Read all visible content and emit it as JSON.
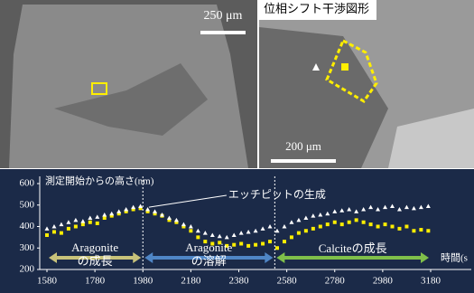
{
  "panels": {
    "sem": {
      "scale_label": "250 μm"
    },
    "interferogram": {
      "title": "位相シフト干渉図形",
      "scale_label": "200 μm"
    }
  },
  "chart_data": {
    "type": "scatter",
    "y_label": "測定開始からの高さ(nm)",
    "x_label": "時間(s",
    "xlim": [
      1580,
      3180
    ],
    "xticks": [
      1580,
      1780,
      1980,
      2180,
      2380,
      2580,
      2780,
      2980,
      3180
    ],
    "ylim": [
      200,
      600
    ],
    "yticks": [
      200,
      300,
      400,
      500,
      600
    ],
    "x": [
      1580,
      1610,
      1640,
      1670,
      1700,
      1730,
      1760,
      1790,
      1820,
      1850,
      1880,
      1910,
      1940,
      1970,
      2000,
      2030,
      2060,
      2090,
      2120,
      2150,
      2180,
      2210,
      2240,
      2270,
      2300,
      2330,
      2360,
      2390,
      2420,
      2450,
      2480,
      2510,
      2540,
      2570,
      2600,
      2630,
      2660,
      2690,
      2720,
      2750,
      2780,
      2810,
      2840,
      2870,
      2900,
      2930,
      2960,
      2990,
      3020,
      3050,
      3080,
      3110,
      3140,
      3170
    ],
    "series": [
      {
        "color": "#ffee00",
        "marker": "square",
        "values": [
          360,
          375,
          370,
          390,
          400,
          410,
          420,
          415,
          440,
          450,
          460,
          470,
          480,
          485,
          470,
          460,
          450,
          430,
          420,
          400,
          380,
          350,
          330,
          320,
          325,
          310,
          315,
          320,
          310,
          315,
          320,
          330,
          300,
          330,
          350,
          370,
          380,
          390,
          400,
          410,
          420,
          410,
          420,
          430,
          420,
          410,
          400,
          410,
          400,
          390,
          400,
          380,
          385,
          380
        ]
      },
      {
        "color": "#ffffff",
        "marker": "triangle",
        "values": [
          390,
          400,
          410,
          420,
          430,
          425,
          440,
          445,
          455,
          460,
          470,
          480,
          490,
          495,
          480,
          470,
          455,
          440,
          430,
          410,
          400,
          380,
          370,
          360,
          355,
          350,
          360,
          370,
          375,
          380,
          390,
          400,
          380,
          400,
          420,
          430,
          440,
          450,
          455,
          460,
          470,
          475,
          480,
          470,
          480,
          490,
          480,
          490,
          495,
          480,
          490,
          485,
          490,
          495
        ]
      }
    ],
    "dividers": [
      1980,
      2530
    ],
    "annotation": {
      "text": "エッチピットの生成",
      "x": 1990,
      "y": 490
    },
    "phases": [
      {
        "lines": [
          "Aragonite",
          "の成長"
        ],
        "start": 1580,
        "end": 1980,
        "color": "#c8c27a"
      },
      {
        "lines": [
          "Aragonite",
          "の溶解"
        ],
        "start": 1980,
        "end": 2530,
        "color": "#4f86c6"
      },
      {
        "lines": [
          "Calciteの成長"
        ],
        "start": 2530,
        "end": 3180,
        "color": "#7fbf4a"
      }
    ]
  }
}
